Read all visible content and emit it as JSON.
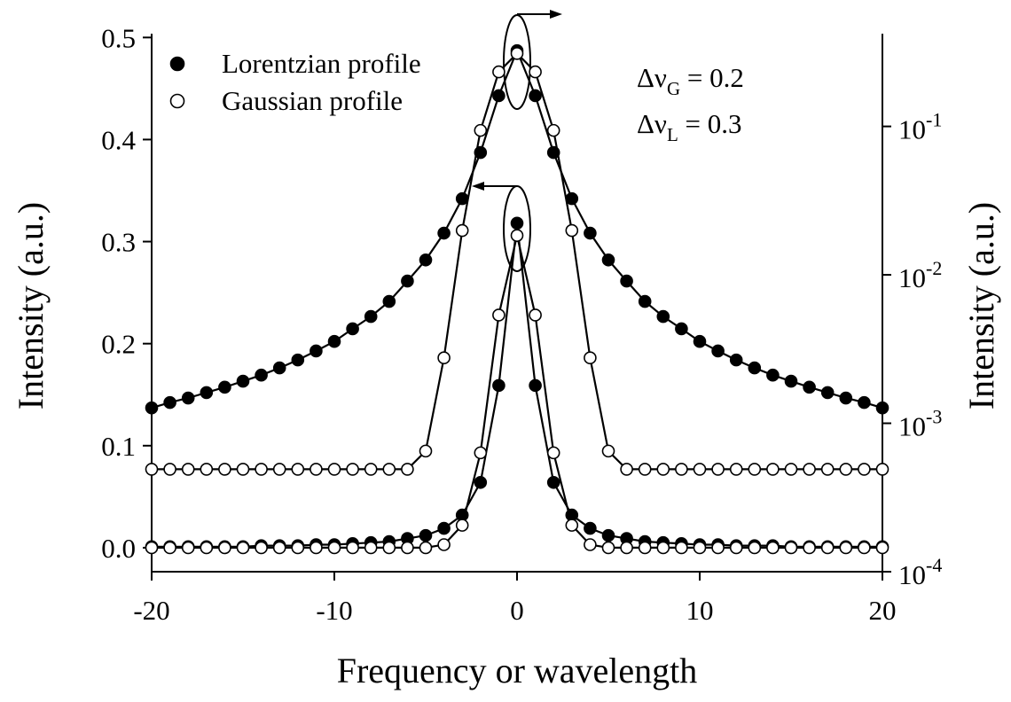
{
  "chart_data": {
    "type": "scatter-line",
    "x_label": "Frequency or wavelength",
    "y_label": "Intensity (a.u.)",
    "y2_label": "Intensity (a.u.)",
    "x": [
      -20,
      -19,
      -18,
      -17,
      -16,
      -15,
      -14,
      -13,
      -12,
      -11,
      -10,
      -9,
      -8,
      -7,
      -6,
      -5,
      -4,
      -3,
      -2,
      -1,
      0,
      1,
      2,
      3,
      4,
      5,
      6,
      7,
      8,
      9,
      10,
      11,
      12,
      13,
      14,
      15,
      16,
      17,
      18,
      19,
      20
    ],
    "xlim": [
      -20,
      20
    ],
    "xticks": [
      -20,
      -10,
      0,
      10,
      20
    ],
    "ylim": [
      -0.0235,
      0.502
    ],
    "yticks": [
      {
        "value": 0,
        "label": "0.0"
      },
      0.1,
      0.2,
      0.3,
      0.4,
      0.5
    ],
    "y2lim": [
      0.0001,
      0.41
    ],
    "y2log": true,
    "y2ticks": [
      {
        "value": 0.0001,
        "label": "10",
        "sup": "-4"
      },
      {
        "value": 0.001,
        "label": "10",
        "sup": "-3"
      },
      {
        "value": 0.01,
        "label": "10",
        "sup": "-2"
      },
      {
        "value": 0.1,
        "label": "10",
        "sup": "-1"
      }
    ],
    "series": [
      {
        "name": "Lorentzian profile",
        "color": "#000000",
        "marker": "filled",
        "values": [
          0.001,
          0.001,
          0.001,
          0.001,
          0.001,
          0.001,
          0.002,
          0.002,
          0.002,
          0.003,
          0.003,
          0.004,
          0.005,
          0.006,
          0.009,
          0.012,
          0.019,
          0.032,
          0.064,
          0.159,
          0.318,
          0.159,
          0.064,
          0.032,
          0.019,
          0.012,
          0.009,
          0.006,
          0.005,
          0.004,
          0.003,
          0.003,
          0.002,
          0.002,
          0.002,
          0.001,
          0.001,
          0.001,
          0.001,
          0.001,
          0.001
        ]
      },
      {
        "name": "Gaussian profile",
        "color": "#000000",
        "marker": "hollow",
        "values": [
          0,
          0,
          0,
          0,
          0,
          0,
          0,
          0,
          0,
          0,
          0,
          0,
          0,
          0,
          0,
          0,
          0.003,
          0.022,
          0.093,
          0.228,
          0.306,
          0.228,
          0.093,
          0.022,
          0.003,
          0,
          0,
          0,
          0,
          0,
          0,
          0,
          0,
          0,
          0,
          0,
          0,
          0,
          0,
          0,
          0
        ]
      },
      {
        "color": "#000000",
        "marker": "filled",
        "axis": "y2",
        "values": [
          0.00127,
          0.00138,
          0.00148,
          0.00161,
          0.00175,
          0.00192,
          0.00211,
          0.00236,
          0.00267,
          0.00307,
          0.00356,
          0.00433,
          0.00524,
          0.00662,
          0.00908,
          0.0126,
          0.0191,
          0.0326,
          0.0667,
          0.161,
          0.324,
          0.161,
          0.0667,
          0.0326,
          0.0191,
          0.0126,
          0.00908,
          0.00662,
          0.00524,
          0.00433,
          0.00356,
          0.00307,
          0.00267,
          0.00236,
          0.00211,
          0.00192,
          0.00175,
          0.00161,
          0.00148,
          0.00138,
          0.00127
        ]
      },
      {
        "color": "#000000",
        "marker": "hollow",
        "axis": "y2",
        "values": [
          0.00049,
          0.00049,
          0.00049,
          0.00049,
          0.00049,
          0.00049,
          0.00049,
          0.00049,
          0.00049,
          0.00049,
          0.00049,
          0.00049,
          0.00049,
          0.00049,
          0.00049,
          0.00065,
          0.00276,
          0.0199,
          0.094,
          0.233,
          0.31,
          0.233,
          0.094,
          0.0199,
          0.00276,
          0.00065,
          0.00049,
          0.00049,
          0.00049,
          0.00049,
          0.00049,
          0.00049,
          0.00049,
          0.00049,
          0.00049,
          0.00049,
          0.00049,
          0.00049,
          0.00049,
          0.00049,
          0.00049
        ]
      }
    ],
    "annotations": [
      {
        "symbol": "Δν",
        "subscript": "G",
        "text": " = 0.2"
      },
      {
        "symbol": "Δν",
        "subscript": "L",
        "text": " = 0.3"
      }
    ]
  }
}
